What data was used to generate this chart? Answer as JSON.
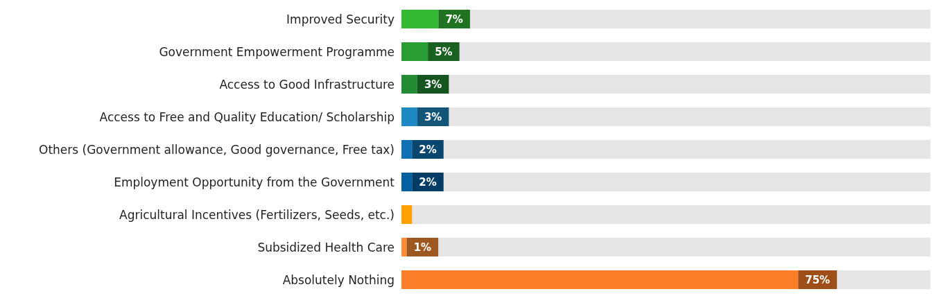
{
  "chart_data": {
    "type": "bar",
    "orientation": "horizontal",
    "categories": [
      "Improved Security",
      "Government Empowerment Programme",
      "Access to Good Infrastructure",
      "Access to Free and Quality Education/ Scholarship",
      "Others (Government allowance, Good governance, Free tax)",
      "Employment Opportunity from the Government",
      "Agricultural Incentives (Fertilizers, Seeds, etc.)",
      "Subsidized Health Care",
      "Absolutely Nothing"
    ],
    "values": [
      7,
      5,
      3,
      3,
      2,
      2,
      2,
      1,
      75
    ],
    "value_labels": [
      "7%",
      "5%",
      "3%",
      "3%",
      "2%",
      "2%",
      null,
      "1%",
      "75%"
    ],
    "colors": [
      "#33b933",
      "#289d33",
      "#228b33",
      "#1e88c3",
      "#1072b4",
      "#0560a2",
      "#ffa100",
      "#fd8d34",
      "#fd7e28"
    ],
    "xlim": [
      0,
      100
    ],
    "tick_labels": "y",
    "grid": false
  }
}
